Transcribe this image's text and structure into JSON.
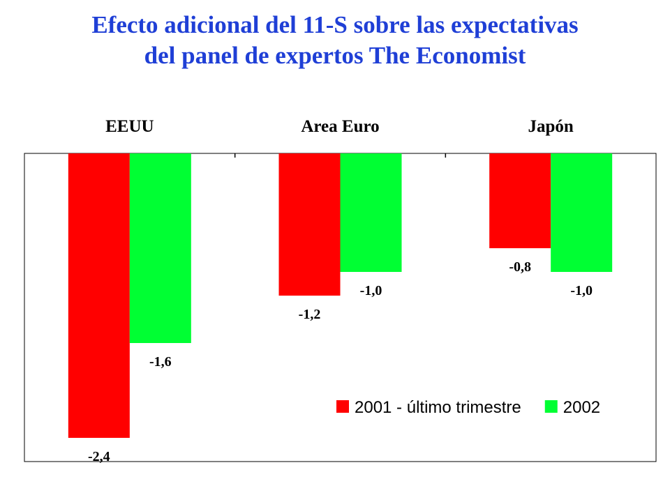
{
  "title": {
    "line1": "Efecto adicional del 11-S sobre las expectativas",
    "line2": "del panel de expertos The Economist"
  },
  "colors": {
    "title": "#1f3fd6",
    "series1": "#ff0000",
    "series2": "#00ff33",
    "axis": "#000000"
  },
  "chart_data": {
    "type": "bar",
    "orientation": "vertical",
    "category_axis_position": "top",
    "categories": [
      "EEUU",
      "Area Euro",
      "Japón"
    ],
    "series": [
      {
        "name": "2001 - último trimestre",
        "values": [
          -2.4,
          -1.2,
          -0.8
        ],
        "labels": [
          "-2,4",
          "-1,2",
          "-0,8"
        ]
      },
      {
        "name": "2002",
        "values": [
          -1.6,
          -1.0,
          -1.0
        ],
        "labels": [
          "-1,6",
          "-1,0",
          "-1,0"
        ]
      }
    ],
    "ylim": [
      -2.6,
      0
    ],
    "grid": false,
    "legend": "bottom-right"
  }
}
